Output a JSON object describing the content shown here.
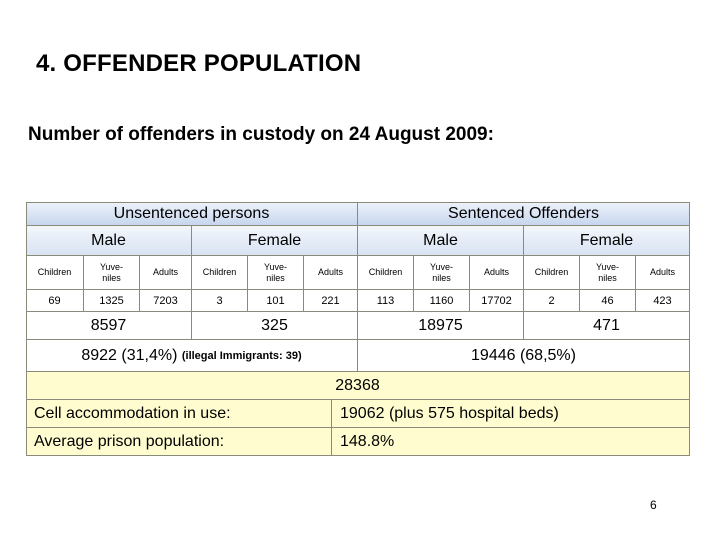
{
  "title": "4.  OFFENDER POPULATION",
  "subtitle": "Number of offenders in custody on 24 August 2009",
  "subtitle_colon": ":",
  "table": {
    "unsentenced_header": "Unsentenced persons",
    "sentenced_header": "Sentenced Offenders",
    "male": "Male",
    "female": "Female",
    "categories": {
      "children": "Children",
      "juveniles_1": "Yuve-",
      "juveniles_2": "niles",
      "adults": "Adults"
    },
    "values": {
      "unsent_male_children": "69",
      "unsent_male_juveniles": "1325",
      "unsent_male_adults": "7203",
      "unsent_female_children": "3",
      "unsent_female_juveniles": "101",
      "unsent_female_adults": "221",
      "sent_male_children": "113",
      "sent_male_juveniles": "1160",
      "sent_male_adults": "17702",
      "sent_female_children": "2",
      "sent_female_juveniles": "46",
      "sent_female_adults": "423"
    },
    "subtotals": {
      "unsent_male": "8597",
      "unsent_female": "325",
      "sent_male": "18975",
      "sent_female": "471"
    },
    "unsentenced_total": "8922 (31,4%)",
    "unsentenced_note": "(illegal Immigrants: 39)",
    "sentenced_total": "19446 (68,5%)",
    "grand_total": "28368",
    "cell_accommodation_label": "Cell accommodation in use:",
    "cell_accommodation_value": "19062 (plus 575 hospital beds)",
    "avg_population_label": "Average prison population:",
    "avg_population_value": "148.8%"
  },
  "page_number": "6"
}
